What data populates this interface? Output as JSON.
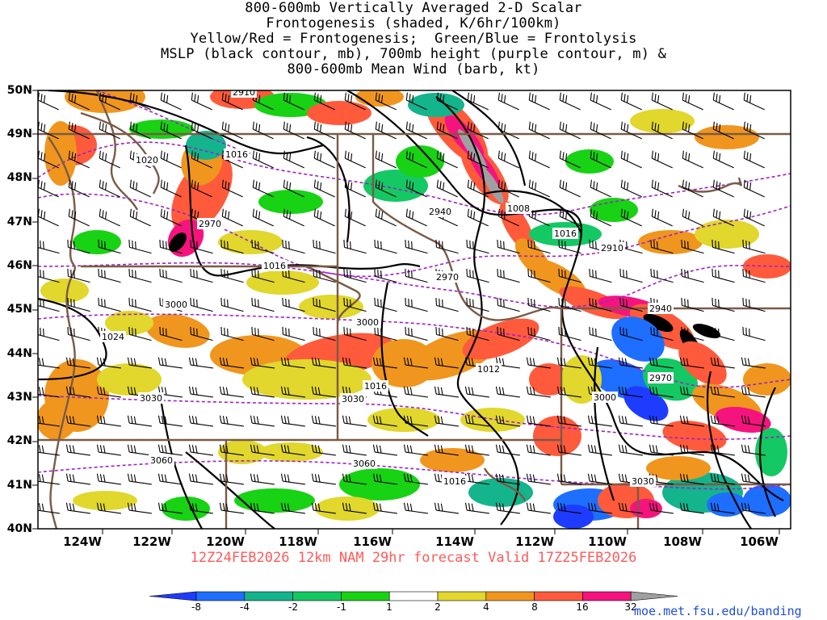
{
  "title_lines": [
    "800-600mb Vertically Averaged 2-D Scalar",
    "Frontogenesis (shaded, K/6hr/100km)",
    "Yellow/Red = Frontogenesis;  Green/Blue = Frontolysis",
    "MSLP (black contour, mb), 700mb height (purple contour, m) &",
    "800-600mb Mean Wind (barb, kt)"
  ],
  "lat_labels": [
    "50N",
    "49N",
    "48N",
    "47N",
    "46N",
    "45N",
    "44N",
    "43N",
    "42N",
    "41N",
    "40N"
  ],
  "lon_labels": [
    "124W",
    "122W",
    "120W",
    "118W",
    "116W",
    "114W",
    "112W",
    "110W",
    "108W",
    "106W"
  ],
  "valid_text": "12Z24FEB2026 12km NAM 29hr forecast Valid 17Z25FEB2026",
  "colorbar": {
    "labels": [
      "-8",
      "-4",
      "-2",
      "-1",
      "1",
      "2",
      "4",
      "8",
      "16",
      "32"
    ],
    "colors": [
      "#1e3cff",
      "#1e6eff",
      "#14b48c",
      "#14c864",
      "#18d214",
      "#ffffff",
      "#e1d72d",
      "#f0961e",
      "#ff5a3c",
      "#f5147d",
      "#000000",
      "#a0a0a0"
    ]
  },
  "contour_labels": {
    "mslp": [
      "1020",
      "1016",
      "1024",
      "1008",
      "1016",
      "1012",
      "1016",
      "1016",
      "1016"
    ],
    "height": [
      "2970",
      "2940",
      "2910",
      "2970",
      "3000",
      "3000",
      "3030",
      "3030",
      "3060",
      "3060",
      "2940",
      "2970",
      "3000",
      "3030",
      "2910"
    ]
  },
  "url": "moe.met.fsu.edu/banding"
}
